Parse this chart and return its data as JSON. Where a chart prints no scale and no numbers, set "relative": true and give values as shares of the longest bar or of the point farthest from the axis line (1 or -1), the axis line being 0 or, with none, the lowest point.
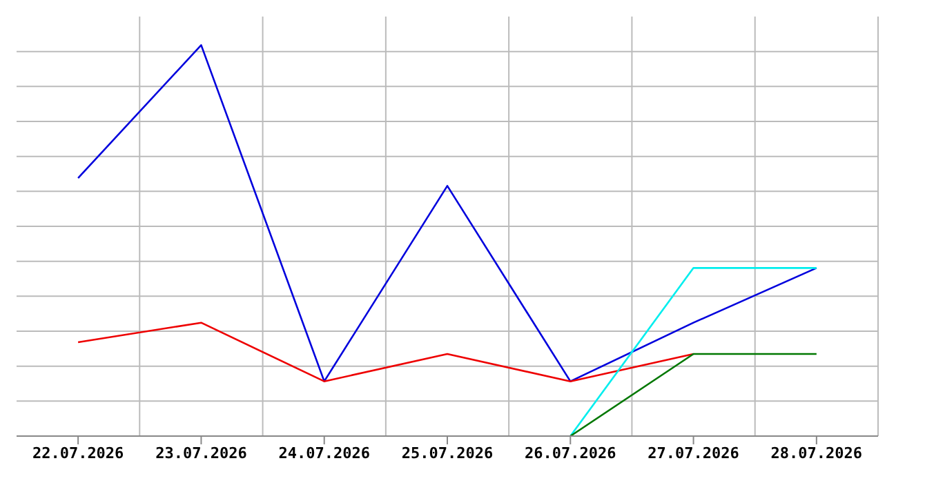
{
  "chart_data": {
    "type": "line",
    "relative": true,
    "grid": true,
    "marker": "none",
    "categories": [
      "22.07.2026",
      "23.07.2026",
      "24.07.2026",
      "25.07.2026",
      "26.07.2026",
      "27.07.2026",
      "28.07.2026"
    ],
    "series": [
      {
        "color": "#0000dd",
        "values": [
          0.66,
          1,
          0.14,
          0.64,
          0.14,
          0.29,
          0.43
        ]
      },
      {
        "color": "#ee0000",
        "values": [
          0.24,
          0.29,
          0.14,
          0.21,
          0.14,
          0.21,
          null
        ]
      },
      {
        "color": "#00eeee",
        "values": [
          null,
          null,
          null,
          null,
          0,
          0.43,
          0.43
        ]
      },
      {
        "color": "#007700",
        "values": [
          null,
          null,
          null,
          null,
          0,
          0.21,
          0.21
        ]
      }
    ]
  }
}
